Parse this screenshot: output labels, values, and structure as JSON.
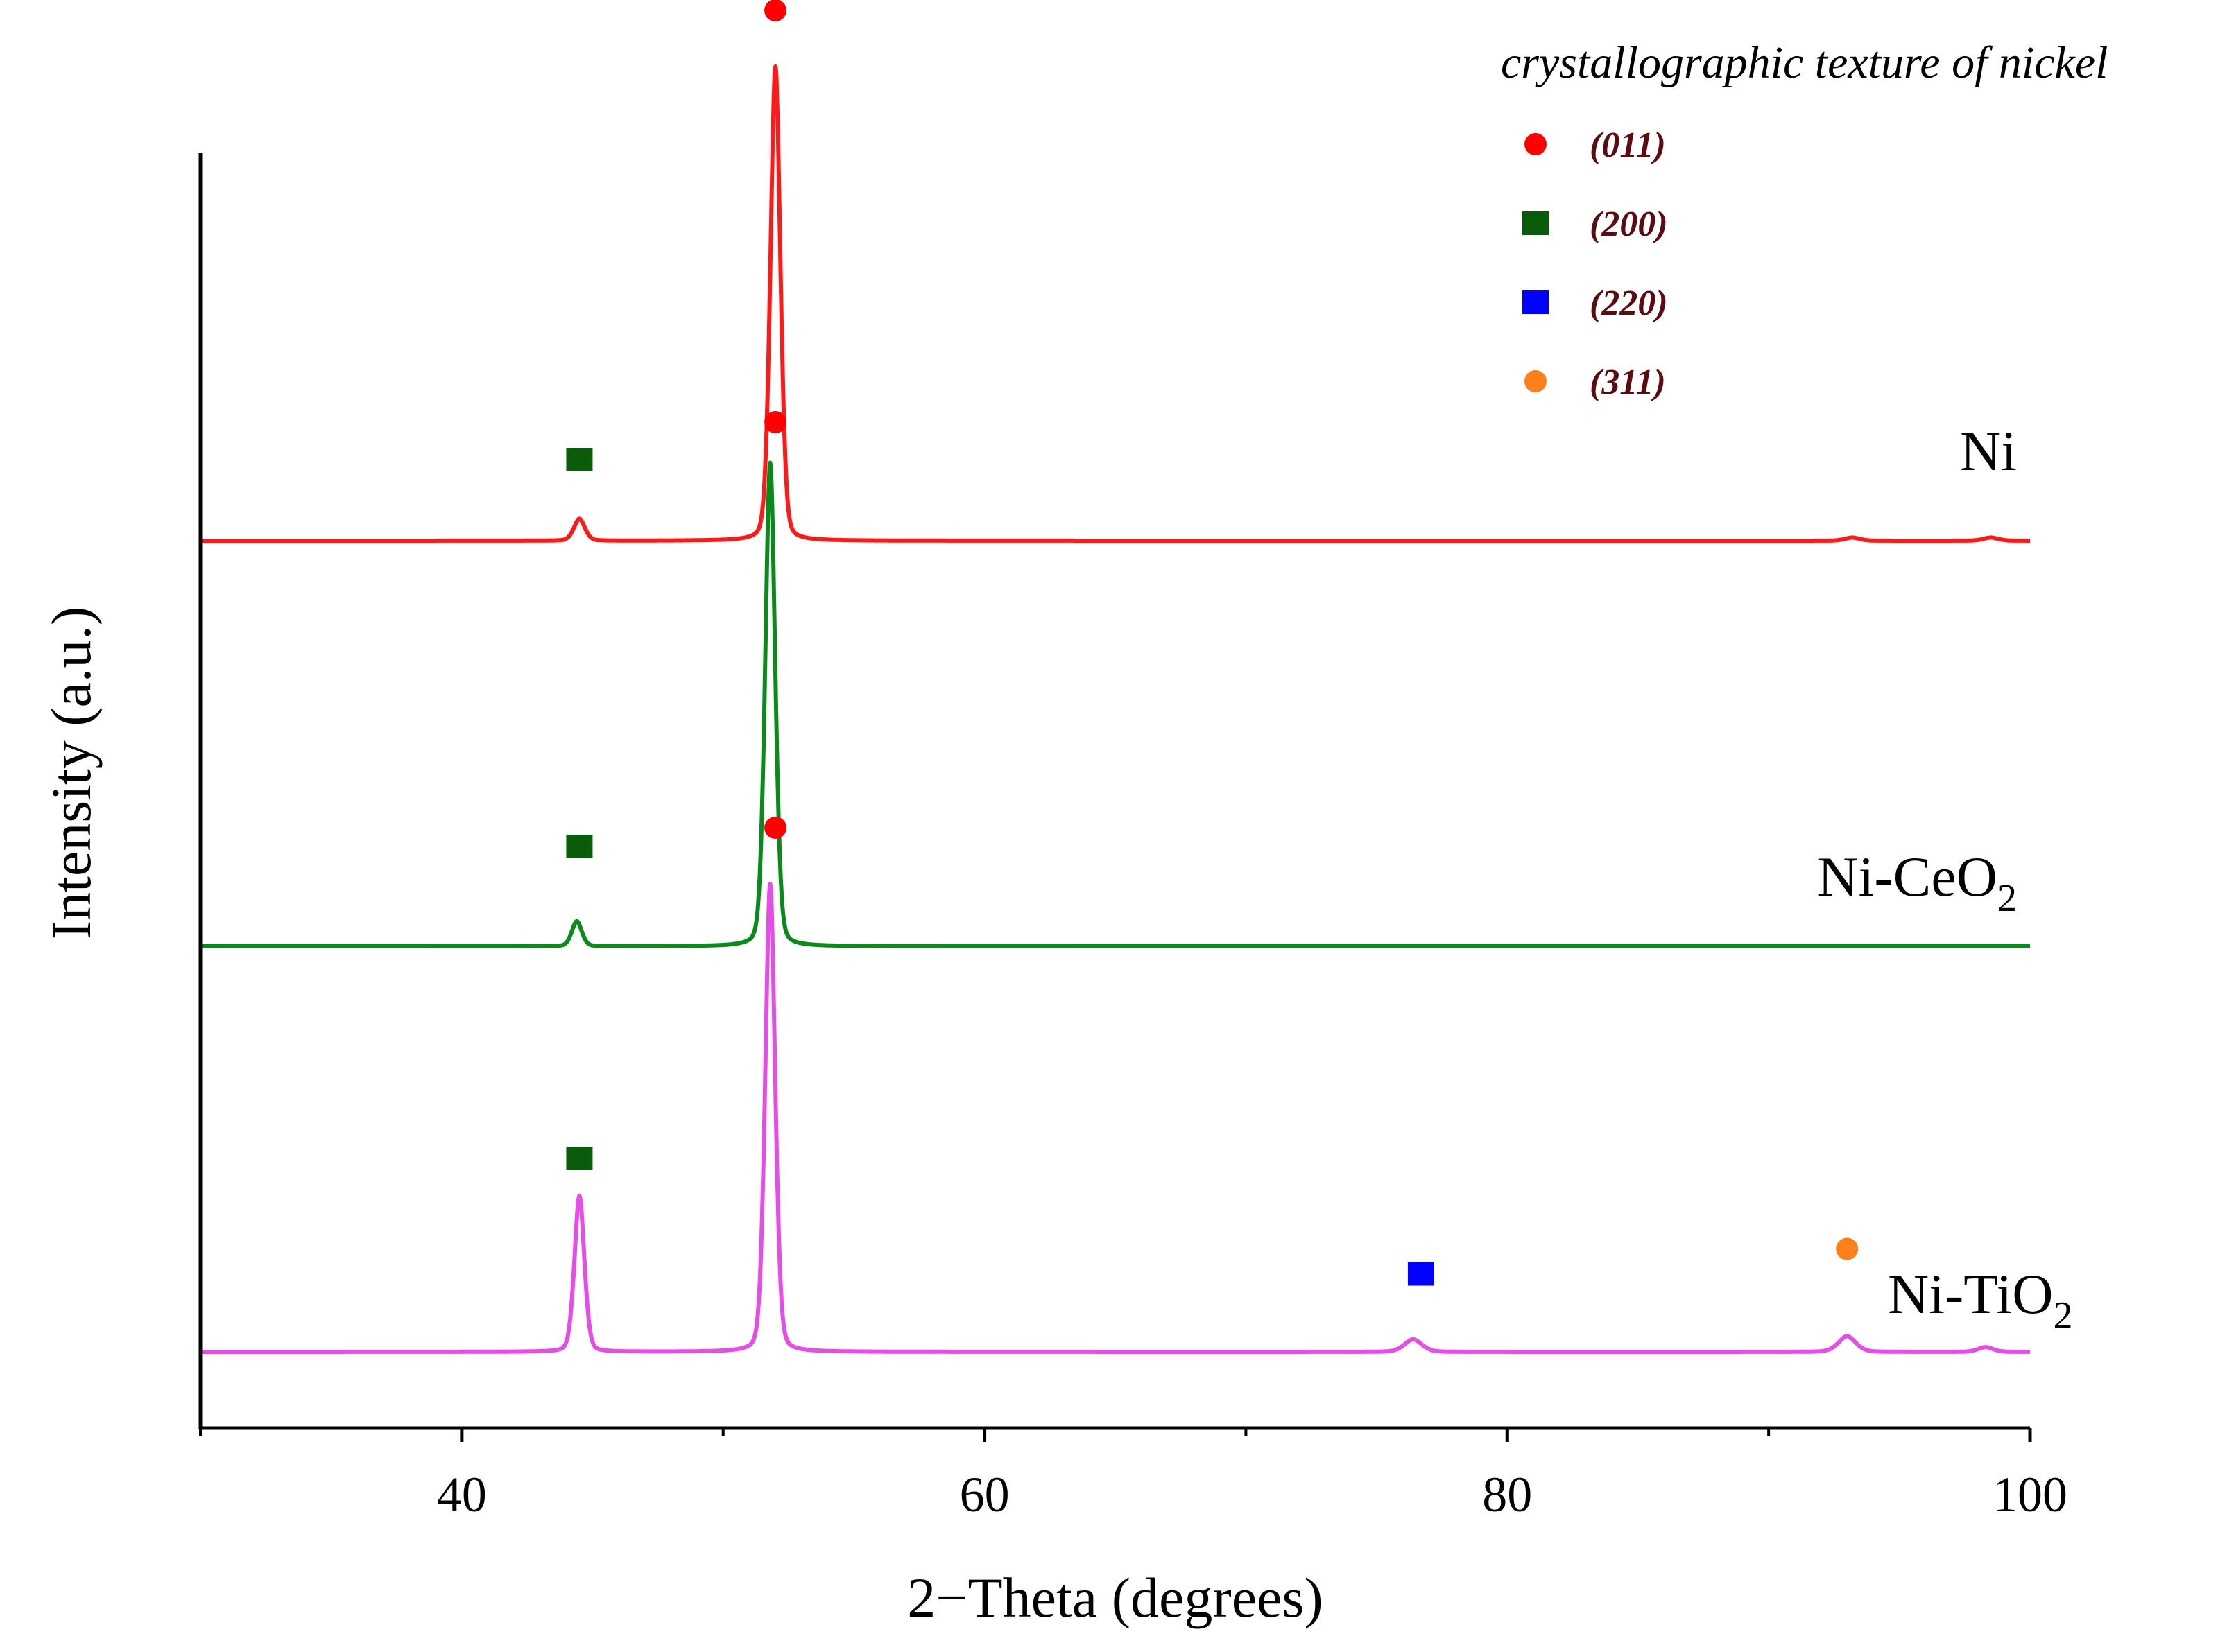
{
  "chart_data": {
    "type": "line",
    "title": "",
    "xlabel": "2−Theta (degrees)",
    "ylabel": "Intensity (a.u.)",
    "xlim": [
      30,
      100
    ],
    "x_major_ticks": [
      40,
      60,
      80,
      100
    ],
    "x_minor_ticks": [
      30,
      50,
      70,
      90
    ],
    "grid": false,
    "y_ticks_shown": false,
    "legend": {
      "title": "crystallographic texture of nickel",
      "position": "top-right",
      "entries": [
        {
          "label": "(011)",
          "marker": "circle",
          "color": "#ff0000"
        },
        {
          "label": "(200)",
          "marker": "square",
          "color": "#0a5c0a"
        },
        {
          "label": "(220)",
          "marker": "square",
          "color": "#0000ff"
        },
        {
          "label": "(311)",
          "marker": "circle",
          "color": "#ff7f1a"
        }
      ]
    },
    "series": [
      {
        "name": "Ni",
        "label_main": "Ni",
        "label_sub": "",
        "color": "#ff1a1a",
        "offset": 2.6,
        "peaks": [
          {
            "x": 44.5,
            "height": 0.07,
            "width": 0.22,
            "hkl": "(200)"
          },
          {
            "x": 52.0,
            "height": 1.52,
            "width": 0.2,
            "hkl": "(011)"
          },
          {
            "x": 93.2,
            "height": 0.01,
            "width": 0.3,
            "hkl": ""
          },
          {
            "x": 98.5,
            "height": 0.01,
            "width": 0.3,
            "hkl": ""
          }
        ]
      },
      {
        "name": "Ni-CeO2",
        "label_main": "Ni-CeO",
        "label_sub": "2",
        "color": "#0a8a1a",
        "offset": 1.3,
        "peaks": [
          {
            "x": 44.4,
            "height": 0.08,
            "width": 0.2,
            "hkl": "(200)"
          },
          {
            "x": 51.8,
            "height": 1.55,
            "width": 0.2,
            "hkl": "(011)"
          }
        ]
      },
      {
        "name": "Ni-TiO2",
        "label_main": "Ni-TiO",
        "label_sub": "2",
        "color": "#e64ce6",
        "offset": 0.0,
        "peaks": [
          {
            "x": 44.5,
            "height": 0.5,
            "width": 0.2,
            "hkl": "(200)"
          },
          {
            "x": 51.8,
            "height": 1.5,
            "width": 0.2,
            "hkl": "(011)"
          },
          {
            "x": 76.4,
            "height": 0.04,
            "width": 0.35,
            "hkl": "(220)"
          },
          {
            "x": 93.0,
            "height": 0.05,
            "width": 0.35,
            "hkl": "(311)"
          },
          {
            "x": 98.3,
            "height": 0.015,
            "width": 0.3,
            "hkl": ""
          }
        ]
      }
    ],
    "peak_markers": [
      {
        "series": "Ni",
        "x": 44.5,
        "y": 2.86,
        "marker": "square",
        "color": "#0a5c0a"
      },
      {
        "series": "Ni",
        "x": 52.0,
        "y": 4.3,
        "marker": "circle",
        "color": "#ff0000"
      },
      {
        "series": "Ni-CeO2",
        "x": 44.5,
        "y": 1.62,
        "marker": "square",
        "color": "#0a5c0a"
      },
      {
        "series": "Ni-CeO2",
        "x": 52.0,
        "y": 2.98,
        "marker": "circle",
        "color": "#ff0000"
      },
      {
        "series": "Ni-TiO2",
        "x": 44.5,
        "y": 0.62,
        "marker": "square",
        "color": "#0a5c0a"
      },
      {
        "series": "Ni-TiO2",
        "x": 52.0,
        "y": 1.68,
        "marker": "circle",
        "color": "#ff0000"
      },
      {
        "series": "Ni-TiO2",
        "x": 76.7,
        "y": 0.25,
        "marker": "square",
        "color": "#0000ff"
      },
      {
        "series": "Ni-TiO2",
        "x": 93.0,
        "y": 0.33,
        "marker": "circle",
        "color": "#ff7f1a"
      }
    ]
  }
}
